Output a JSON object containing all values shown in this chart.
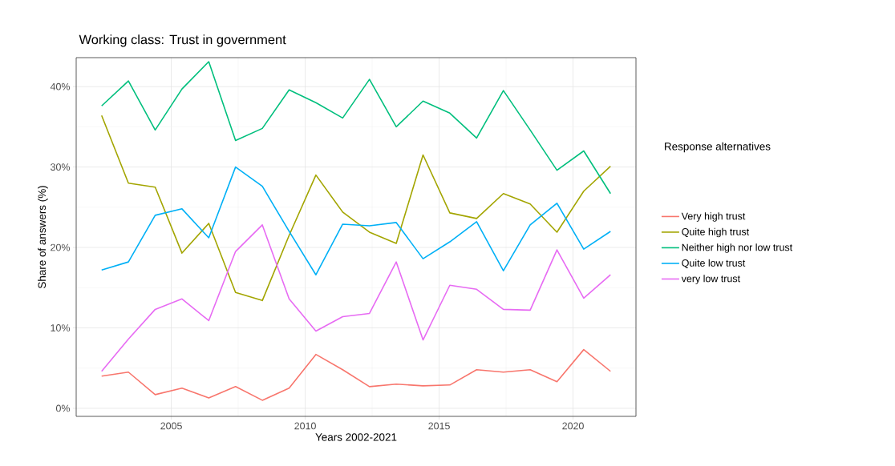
{
  "chart_data": {
    "type": "line",
    "title": "Working class: Trust in government",
    "xlabel": "Years 2002-2021",
    "ylabel": "Share of answers (%)",
    "legend_title": "Response alternatives",
    "x": [
      2002.4,
      2003.4,
      2004.4,
      2005.4,
      2006.4,
      2007.4,
      2008.4,
      2009.4,
      2010.4,
      2011.4,
      2012.4,
      2013.4,
      2014.4,
      2015.4,
      2016.4,
      2017.4,
      2018.4,
      2019.4,
      2020.4,
      2021.4
    ],
    "series": [
      {
        "name": "Very high trust",
        "color": "#f8766d",
        "values": [
          4.0,
          4.5,
          1.7,
          2.5,
          1.3,
          2.7,
          1.0,
          2.5,
          6.7,
          4.8,
          2.7,
          3.0,
          2.8,
          2.9,
          4.8,
          4.5,
          4.8,
          3.3,
          7.3,
          4.6
        ]
      },
      {
        "name": "Quite high trust",
        "color": "#a3a500",
        "values": [
          36.4,
          28.0,
          27.5,
          19.3,
          23.0,
          14.4,
          13.4,
          21.5,
          29.0,
          24.4,
          21.9,
          20.5,
          31.5,
          24.3,
          23.6,
          26.7,
          25.4,
          21.9,
          27.0,
          30.1
        ]
      },
      {
        "name": "Neither high nor low trust",
        "color": "#00bf7d",
        "values": [
          37.6,
          40.7,
          34.6,
          39.7,
          43.1,
          33.3,
          34.8,
          39.6,
          38.0,
          36.1,
          40.9,
          35.0,
          38.2,
          36.7,
          33.6,
          39.5,
          34.6,
          29.6,
          32.0,
          26.7
        ]
      },
      {
        "name": "Quite low trust",
        "color": "#00b0f6",
        "values": [
          17.2,
          18.2,
          24.0,
          24.8,
          21.2,
          30.0,
          27.6,
          22.0,
          16.6,
          22.9,
          22.7,
          23.1,
          18.6,
          20.7,
          23.2,
          17.1,
          22.8,
          25.5,
          19.8,
          22.0
        ]
      },
      {
        "name": "very low trust",
        "color": "#e76bf3",
        "values": [
          4.6,
          8.6,
          12.3,
          13.6,
          10.9,
          19.5,
          22.8,
          13.6,
          9.6,
          11.4,
          11.8,
          18.2,
          8.5,
          15.3,
          14.8,
          12.3,
          12.2,
          19.7,
          13.7,
          16.6
        ]
      }
    ],
    "xlim": [
      2001.45,
      2022.35
    ],
    "xticks": [
      2005,
      2010,
      2015,
      2020
    ],
    "ylim": [
      -1,
      43.6
    ],
    "yticks": [
      {
        "value": 0,
        "label": "0%"
      },
      {
        "value": 10,
        "label": "10%"
      },
      {
        "value": 20,
        "label": "20%"
      },
      {
        "value": 30,
        "label": "30%"
      },
      {
        "value": 40,
        "label": "40%"
      }
    ],
    "grid": true,
    "legend": "right",
    "marker": "none",
    "line_style": "solid"
  }
}
